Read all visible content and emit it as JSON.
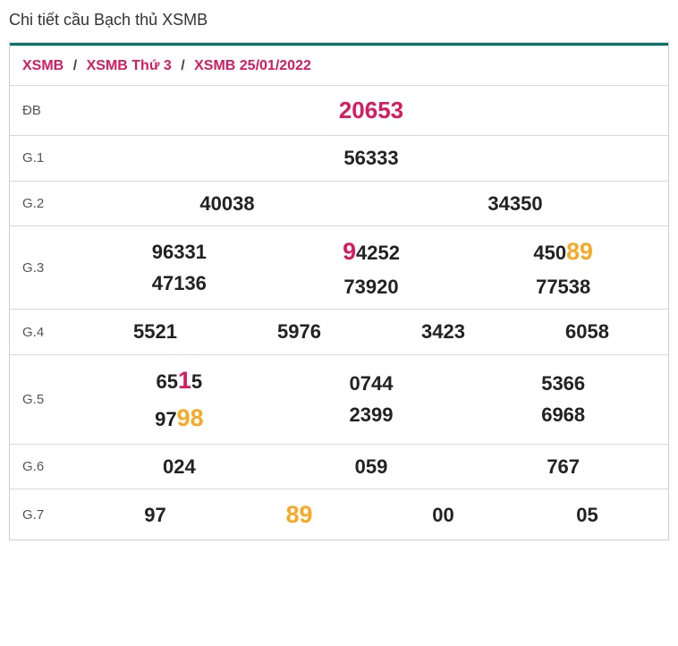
{
  "title": "Chi tiết cầu Bạch thủ XSMB",
  "colors": {
    "accent_bar": "#00796b",
    "breadcrumb_link": "#d81b60",
    "highlight_red": "#d81b60",
    "highlight_amber": "#f9a825",
    "border": "#cfcfcf",
    "row_border": "#d8d8d8",
    "text": "#333333",
    "label": "#555555",
    "number": "#222222",
    "background": "#ffffff"
  },
  "breadcrumb": [
    "XSMB",
    "XSMB Thứ 3",
    "XSMB 25/01/2022"
  ],
  "breadcrumb_sep": "/",
  "rows": {
    "db": {
      "label": "ĐB",
      "cells": [
        [
          {
            "t": "20653"
          }
        ]
      ]
    },
    "g1": {
      "label": "G.1",
      "cells": [
        [
          {
            "t": "56333"
          }
        ]
      ]
    },
    "g2": {
      "label": "G.2",
      "cells": [
        [
          {
            "t": "40038"
          }
        ],
        [
          {
            "t": "34350"
          }
        ]
      ]
    },
    "g3": {
      "label": "G.3",
      "cells": [
        [
          {
            "t": "96331"
          },
          {
            "t": "47136"
          }
        ],
        [
          {
            "segs": [
              {
                "t": "9",
                "c": "red"
              },
              {
                "t": "4252"
              }
            ]
          },
          {
            "t": "73920"
          }
        ],
        [
          {
            "segs": [
              {
                "t": "450"
              },
              {
                "t": "89",
                "c": "amber"
              }
            ]
          },
          {
            "t": "77538"
          }
        ]
      ]
    },
    "g4": {
      "label": "G.4",
      "cells": [
        [
          {
            "t": "5521"
          }
        ],
        [
          {
            "t": "5976"
          }
        ],
        [
          {
            "t": "3423"
          }
        ],
        [
          {
            "t": "6058"
          }
        ]
      ]
    },
    "g5": {
      "label": "G.5",
      "cells": [
        [
          {
            "segs": [
              {
                "t": "65"
              },
              {
                "t": "1",
                "c": "red"
              },
              {
                "t": "5"
              }
            ]
          },
          {
            "segs": [
              {
                "t": "97"
              },
              {
                "t": "98",
                "c": "amber"
              }
            ]
          }
        ],
        [
          {
            "t": "0744"
          },
          {
            "t": "2399"
          }
        ],
        [
          {
            "t": "5366"
          },
          {
            "t": "6968"
          }
        ]
      ]
    },
    "g6": {
      "label": "G.6",
      "cells": [
        [
          {
            "t": "024"
          }
        ],
        [
          {
            "t": "059"
          }
        ],
        [
          {
            "t": "767"
          }
        ]
      ]
    },
    "g7": {
      "label": "G.7",
      "cells": [
        [
          {
            "t": "97"
          }
        ],
        [
          {
            "segs": [
              {
                "t": "89",
                "c": "amber"
              }
            ]
          }
        ],
        [
          {
            "t": "00"
          }
        ],
        [
          {
            "t": "05"
          }
        ]
      ]
    }
  },
  "row_order": [
    "db",
    "g1",
    "g2",
    "g3",
    "g4",
    "g5",
    "g6",
    "g7"
  ]
}
